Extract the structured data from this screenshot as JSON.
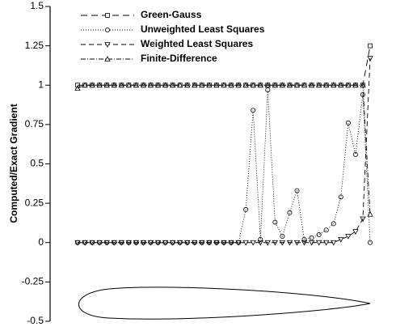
{
  "chart_data": {
    "type": "line",
    "y_label": "Computed/Exact Gradient",
    "x": [
      0,
      0.025,
      0.05,
      0.075,
      0.1,
      0.125,
      0.15,
      0.175,
      0.2,
      0.225,
      0.25,
      0.275,
      0.3,
      0.325,
      0.35,
      0.375,
      0.4,
      0.425,
      0.45,
      0.475,
      0.5,
      0.525,
      0.55,
      0.575,
      0.6,
      0.625,
      0.65,
      0.675,
      0.7,
      0.725,
      0.75,
      0.775,
      0.8,
      0.825,
      0.85,
      0.875,
      0.9,
      0.925,
      0.95,
      0.975,
      1
    ],
    "xlim": [
      0,
      1
    ],
    "ylim": [
      -0.5,
      1.5
    ],
    "yticks": [
      -0.5,
      -0.25,
      0,
      0.25,
      0.5,
      0.75,
      1,
      1.25,
      1.5
    ],
    "legend": "upper left",
    "series": [
      {
        "name": "Green-Gauss",
        "color": "#000000",
        "dash": "8,5",
        "marker": "square",
        "values": [
          1,
          1,
          1,
          1,
          1,
          1,
          1,
          1,
          1,
          1,
          1,
          1,
          1,
          1,
          1,
          1,
          1,
          1,
          1,
          1,
          1,
          1,
          1,
          1,
          1,
          1,
          1,
          1,
          1,
          1,
          1,
          1,
          1,
          1,
          1,
          1,
          1,
          1,
          1,
          1,
          1.25
        ]
      },
      {
        "name": "Unweighted Least Squares",
        "color": "#000000",
        "dash": "1,2",
        "marker": "circle",
        "values": [
          0,
          0,
          0,
          0,
          0,
          0,
          0,
          0,
          0,
          0,
          0,
          0,
          0,
          0,
          0,
          0,
          0,
          0,
          0,
          0,
          0,
          0,
          0,
          0.21,
          0.84,
          0.02,
          0.97,
          0.13,
          0.04,
          0.19,
          0.33,
          0.02,
          0.03,
          0.05,
          0.08,
          0.12,
          0.29,
          0.76,
          0.56,
          0.94,
          0
        ]
      },
      {
        "name": "Weighted Least Squares",
        "color": "#000000",
        "dash": "6,4",
        "marker": "triangle-down",
        "values": [
          0,
          0,
          0,
          0,
          0,
          0,
          0,
          0,
          0,
          0,
          0,
          0,
          0,
          0,
          0,
          0,
          0,
          0,
          0,
          0,
          0,
          0,
          0,
          0,
          0,
          0,
          0,
          0,
          0,
          0,
          0,
          0,
          0,
          0,
          0,
          0,
          0.02,
          0.04,
          0.07,
          0.15,
          1.17
        ]
      },
      {
        "name": "Finite-Difference",
        "color": "#000000",
        "dash": "6,2,1,2",
        "marker": "triangle-up",
        "values": [
          0.98,
          1,
          1,
          1,
          1,
          1,
          1,
          1,
          1,
          1,
          1,
          1,
          1,
          1,
          1,
          1,
          1,
          1,
          1,
          1,
          1,
          1,
          1,
          1,
          1,
          1,
          1,
          1,
          1,
          1,
          1,
          1,
          1,
          1,
          1,
          1,
          1,
          1,
          1,
          1,
          0.18
        ]
      }
    ]
  }
}
